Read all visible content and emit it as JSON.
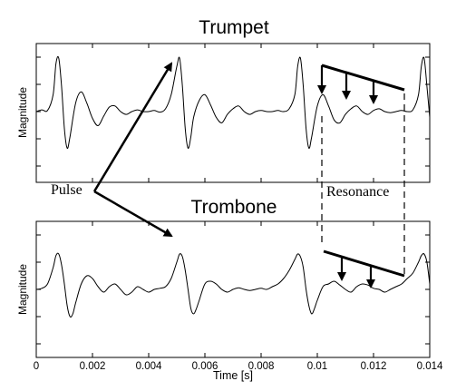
{
  "chart_data": {
    "type": "line",
    "xlabel": "Time [s]",
    "xlim": [
      0,
      0.014
    ],
    "xticks": [
      "0",
      "0.002",
      "0.004",
      "0.006",
      "0.008",
      "0.01",
      "0.012",
      "0.014"
    ],
    "xtick_values": [
      0,
      0.002,
      0.004,
      0.006,
      0.008,
      0.01,
      0.012,
      0.014
    ],
    "ylim": [
      -1,
      1
    ],
    "grid": false,
    "panels": [
      {
        "title": "Trumpet",
        "ylabel": "Magnitude",
        "x": [
          0,
          0.0002,
          0.0004,
          0.0006,
          0.0007,
          0.0008,
          0.0009,
          0.001,
          0.0011,
          0.0012,
          0.0014,
          0.0016,
          0.0018,
          0.002,
          0.0022,
          0.0024,
          0.0026,
          0.0028,
          0.003,
          0.0032,
          0.0034,
          0.0036,
          0.0038,
          0.004,
          0.0042,
          0.0044,
          0.0046,
          0.0048,
          0.005,
          0.0051,
          0.0052,
          0.0053,
          0.0054,
          0.0055,
          0.0056,
          0.0058,
          0.006,
          0.0062,
          0.0064,
          0.0066,
          0.0068,
          0.007,
          0.0072,
          0.0074,
          0.0076,
          0.0078,
          0.008,
          0.0082,
          0.0084,
          0.0086,
          0.0088,
          0.009,
          0.0092,
          0.0093,
          0.0094,
          0.0095,
          0.0096,
          0.0097,
          0.0098,
          0.01,
          0.0102,
          0.0104,
          0.0106,
          0.0108,
          0.011,
          0.0112,
          0.0114,
          0.0116,
          0.0118,
          0.012,
          0.0122,
          0.0124,
          0.0126,
          0.0128,
          0.013,
          0.0132,
          0.0134,
          0.0136,
          0.0137,
          0.0138,
          0.0139,
          0.014
        ],
        "y": [
          0,
          0.03,
          0.02,
          0.3,
          0.85,
          0.95,
          0.45,
          -0.3,
          -0.65,
          -0.45,
          0.15,
          0.35,
          0.15,
          -0.12,
          -0.25,
          -0.08,
          0.08,
          0.1,
          0.0,
          -0.05,
          0.0,
          0.03,
          0.0,
          0.0,
          0.02,
          -0.01,
          0.05,
          0.3,
          0.8,
          0.95,
          0.45,
          -0.3,
          -0.65,
          -0.45,
          -0.1,
          0.2,
          0.3,
          0.12,
          -0.1,
          -0.2,
          -0.05,
          0.05,
          0.1,
          0.0,
          -0.05,
          0.0,
          0.02,
          0.0,
          0.0,
          0.02,
          0.0,
          0.05,
          0.3,
          0.8,
          0.95,
          0.45,
          -0.3,
          -0.65,
          -0.45,
          0.1,
          0.3,
          0.1,
          -0.15,
          -0.2,
          -0.05,
          0.05,
          0.1,
          0.0,
          -0.05,
          0.02,
          0.05,
          0.0,
          -0.02,
          0.0,
          0.02,
          0.0,
          0.03,
          0.3,
          0.8,
          0.95,
          0.45,
          -0.1
        ]
      },
      {
        "title": "Trombone",
        "ylabel": "Magnitude",
        "x": [
          0,
          0.0002,
          0.0004,
          0.0006,
          0.0007,
          0.0008,
          0.0009,
          0.001,
          0.0011,
          0.0012,
          0.0013,
          0.0014,
          0.0016,
          0.0018,
          0.002,
          0.0022,
          0.0024,
          0.0026,
          0.0028,
          0.003,
          0.0032,
          0.0034,
          0.0036,
          0.0038,
          0.004,
          0.0042,
          0.0044,
          0.0046,
          0.0048,
          0.005,
          0.0051,
          0.0052,
          0.0053,
          0.0054,
          0.0055,
          0.0056,
          0.0057,
          0.0058,
          0.006,
          0.0062,
          0.0064,
          0.0066,
          0.0068,
          0.007,
          0.0072,
          0.0074,
          0.0076,
          0.0078,
          0.008,
          0.0082,
          0.0084,
          0.0086,
          0.0088,
          0.009,
          0.0092,
          0.0093,
          0.0094,
          0.0095,
          0.0096,
          0.0097,
          0.0098,
          0.0099,
          0.01,
          0.0102,
          0.0104,
          0.0106,
          0.0108,
          0.011,
          0.0112,
          0.0114,
          0.0116,
          0.0118,
          0.012,
          0.0122,
          0.0124,
          0.0126,
          0.0128,
          0.013,
          0.0132,
          0.0134,
          0.0136,
          0.0137,
          0.0138,
          0.0139,
          0.014
        ],
        "y": [
          0,
          0.02,
          0.1,
          0.4,
          0.62,
          0.65,
          0.45,
          0.1,
          -0.3,
          -0.5,
          -0.45,
          -0.25,
          0.1,
          0.25,
          0.2,
          0.05,
          -0.05,
          0.05,
          0.1,
          0.0,
          -0.1,
          -0.05,
          0.05,
          0.0,
          -0.05,
          0.0,
          0.02,
          0.05,
          0.2,
          0.5,
          0.65,
          0.6,
          0.35,
          0.0,
          -0.35,
          -0.45,
          -0.35,
          -0.2,
          0.1,
          0.15,
          0.1,
          0.0,
          -0.05,
          0.0,
          0.03,
          0.0,
          -0.02,
          0.0,
          0.02,
          0.0,
          0.05,
          0.1,
          0.2,
          0.35,
          0.55,
          0.65,
          0.6,
          0.4,
          0.0,
          -0.3,
          -0.45,
          -0.35,
          -0.2,
          0.05,
          0.1,
          0.15,
          0.08,
          0.0,
          -0.05,
          0.05,
          0.1,
          0.08,
          0.02,
          0.0,
          -0.05,
          0.0,
          0.05,
          0.1,
          0.2,
          0.3,
          0.5,
          0.62,
          0.65,
          0.5,
          0.1
        ]
      }
    ],
    "annotations": {
      "pulse_label": "Pulse",
      "resonance_label": "Resonance"
    }
  }
}
